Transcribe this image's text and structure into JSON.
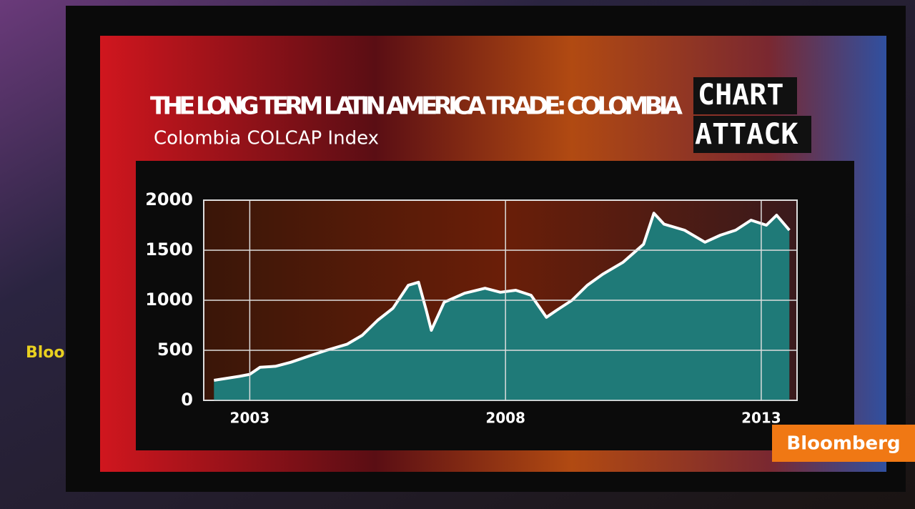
{
  "chart_data": {
    "type": "area",
    "title": "THE LONG TERM LATIN AMERICA TRADE: COLOMBIA",
    "subtitle": "Colombia COLCAP Index",
    "x": [
      2002.3,
      2002.8,
      2003.0,
      2003.2,
      2003.5,
      2003.8,
      2004.2,
      2004.5,
      2004.9,
      2005.2,
      2005.5,
      2005.8,
      2006.1,
      2006.3,
      2006.45,
      2006.55,
      2006.8,
      2007.2,
      2007.6,
      2007.9,
      2008.2,
      2008.5,
      2008.8,
      2009.0,
      2009.3,
      2009.6,
      2009.9,
      2010.3,
      2010.7,
      2010.9,
      2011.1,
      2011.5,
      2011.9,
      2012.2,
      2012.5,
      2012.8,
      2013.1,
      2013.3,
      2013.55
    ],
    "series": [
      {
        "name": "COLCAP",
        "color": "#1f7a78",
        "values": [
          200,
          240,
          260,
          330,
          340,
          380,
          450,
          500,
          560,
          650,
          800,
          920,
          1150,
          1180,
          900,
          700,
          980,
          1070,
          1120,
          1080,
          1100,
          1050,
          830,
          900,
          1000,
          1150,
          1260,
          1380,
          1560,
          1870,
          1760,
          1700,
          1580,
          1650,
          1700,
          1800,
          1750,
          1850,
          1700
        ]
      }
    ],
    "xlim": [
      2002.1,
      2013.7
    ],
    "xticks": [
      2003,
      2008,
      2013
    ],
    "ylim": [
      0,
      2000
    ],
    "yticks": [
      0,
      500,
      1000,
      1500,
      2000
    ],
    "grid": true
  },
  "overlay": {
    "badge": [
      "CHART",
      "ATTACK"
    ],
    "logo": "Bloomberg",
    "background_sign": "Bloomberg"
  }
}
